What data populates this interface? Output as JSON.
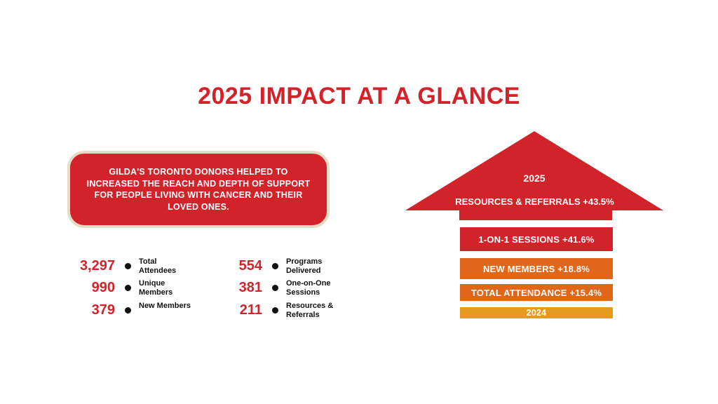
{
  "title": "2025 IMPACT AT A GLANCE",
  "callout": {
    "text": "GILDA'S TORONTO DONORS HELPED TO INCREASED THE REACH AND DEPTH OF SUPPORT FOR PEOPLE LIVING WITH CANCER AND THEIR LOVED ONES."
  },
  "stats_left": [
    {
      "value": "3,297",
      "label": "Total Attendees"
    },
    {
      "value": "990",
      "label": "Unique Members"
    },
    {
      "value": "379",
      "label": "New Members"
    }
  ],
  "stats_right": [
    {
      "value": "554",
      "label": "Programs Delivered"
    },
    {
      "value": "381",
      "label": "One-on-One Sessions"
    },
    {
      "value": "211",
      "label": "Resources & Referrals"
    }
  ],
  "arrow": {
    "year_top": "2025",
    "tiers": [
      {
        "label": "RESOURCES & REFERRALS +43.5%",
        "color": "#d2232a"
      },
      {
        "label": "1-ON-1 SESSIONS +41.6%",
        "color": "#d2232a"
      },
      {
        "label": "NEW MEMBERS +18.8%",
        "color": "#e0661a"
      },
      {
        "label": "TOTAL ATTENDANCE +15.4%",
        "color": "#e0661a"
      },
      {
        "label": "2024",
        "color": "#e39a1e"
      }
    ]
  },
  "colors": {
    "brand_red": "#d2232a",
    "orange": "#e0661a",
    "amber": "#e39a1e",
    "callout_border": "#e6dcc4"
  }
}
